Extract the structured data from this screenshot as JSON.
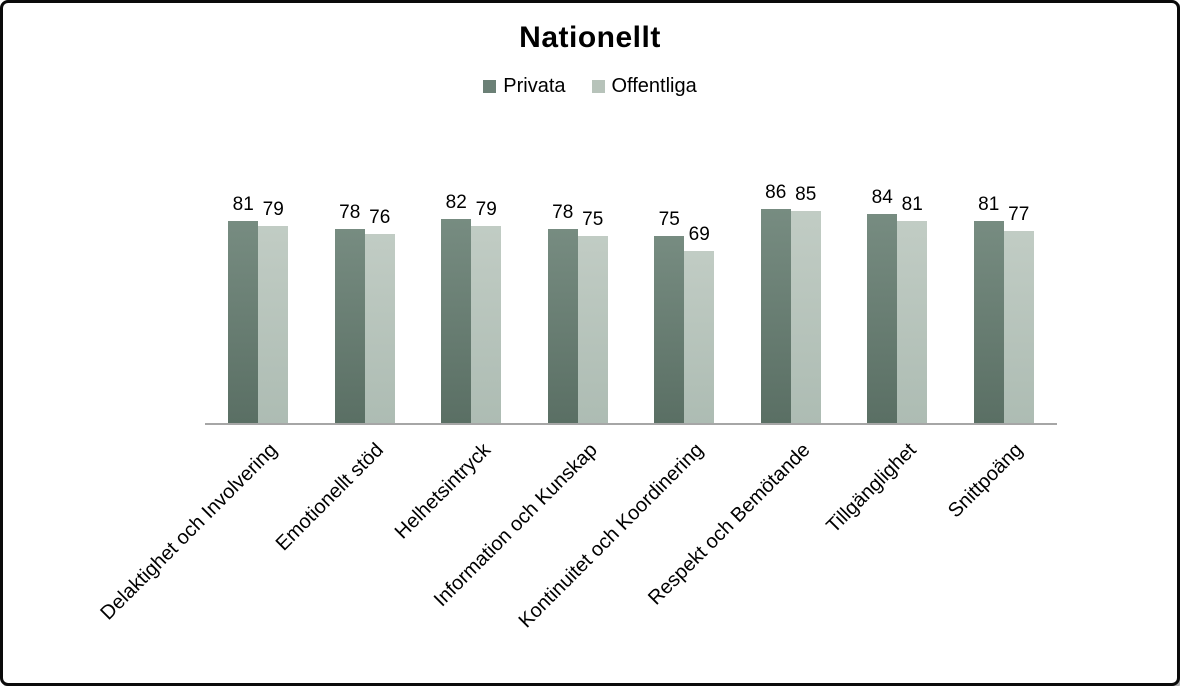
{
  "window": {
    "background_color": "#ffffff",
    "border_color": "#0a0a0a"
  },
  "chart_data": {
    "type": "bar",
    "title": "Nationellt",
    "categories": [
      "Delaktighet och Involvering",
      "Emotionellt stöd",
      "Helhetsintryck",
      "Information och Kunskap",
      "Kontinuitet och Koordinering",
      "Respekt och Bemötande",
      "Tillgänglighet",
      "Snittpoäng"
    ],
    "series": [
      {
        "name": "Privata",
        "values": [
          81,
          78,
          82,
          78,
          75,
          86,
          84,
          81
        ],
        "color": "#6b8076",
        "color_top": "#778c81",
        "color_bottom": "#5a6f64"
      },
      {
        "name": "Offentliga",
        "values": [
          79,
          76,
          79,
          75,
          69,
          85,
          81,
          77
        ],
        "color": "#b7c3ba",
        "color_top": "#c1ccc4",
        "color_bottom": "#adbcb3"
      }
    ],
    "ylim": [
      0,
      100
    ],
    "grid": false,
    "y_axis_visible": false,
    "value_labels": true,
    "legend_position": "top-center",
    "axis_line_color": "#a6a6a6",
    "category_label_rotation_deg": 45
  }
}
